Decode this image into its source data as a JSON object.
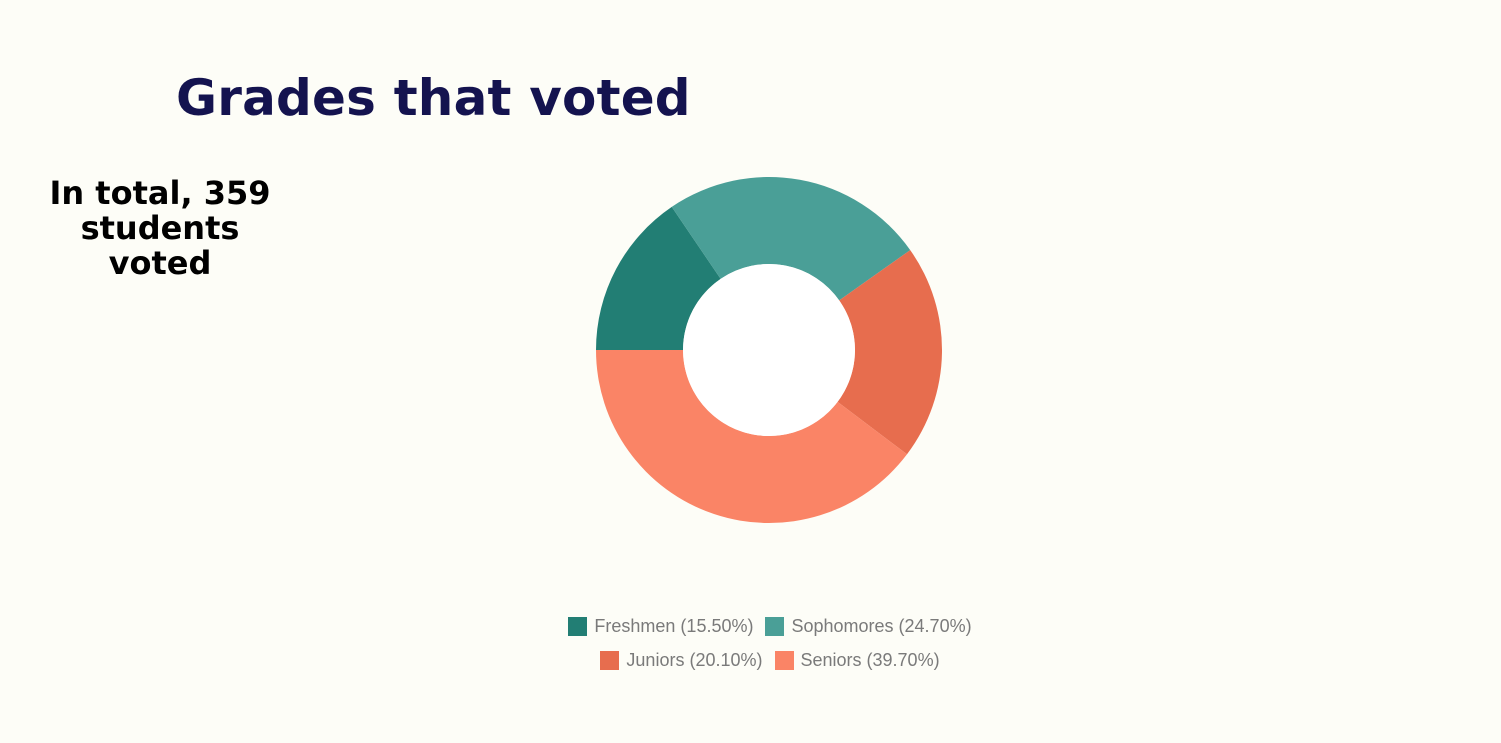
{
  "page": {
    "title": "Grades that voted",
    "summary_lines": [
      "In total, 359",
      "students",
      "voted"
    ]
  },
  "colors": {
    "background": "#fdfdf7",
    "title": "#14134f"
  },
  "chart_data": {
    "type": "pie",
    "variant": "donut",
    "title": "Grades that voted",
    "legend_position": "bottom",
    "categories": [
      "Freshmen",
      "Sophomores",
      "Juniors",
      "Seniors"
    ],
    "values": [
      15.5,
      24.7,
      20.1,
      39.7
    ],
    "unit": "%",
    "legend_labels": [
      "Freshmen (15.50%)",
      "Sophomores (24.70%)",
      "Juniors (20.10%)",
      "Seniors (39.70%)"
    ],
    "colors": [
      "#227e74",
      "#4a9f97",
      "#e76d4e",
      "#fa8466"
    ]
  }
}
